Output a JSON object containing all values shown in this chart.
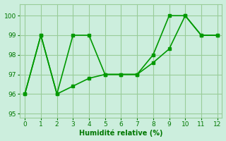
{
  "line1_x": [
    0,
    1,
    2,
    3,
    4,
    5,
    6,
    7,
    8,
    9,
    10,
    11,
    12
  ],
  "line1_y": [
    96,
    99,
    96,
    99,
    99,
    97,
    97,
    97,
    98,
    100,
    100,
    99,
    99
  ],
  "line2_x": [
    0,
    1,
    2,
    3,
    4,
    5,
    6,
    7,
    8,
    9,
    10,
    11,
    12
  ],
  "line2_y": [
    96,
    99,
    96,
    96.4,
    96.8,
    97,
    97,
    97,
    97.6,
    98.3,
    100,
    99,
    99
  ],
  "line_color": "#009900",
  "bg_color": "#cceedd",
  "grid_color": "#99cc99",
  "xlabel": "Humidité relative (%)",
  "xlim": [
    -0.3,
    12.3
  ],
  "ylim": [
    94.8,
    100.6
  ],
  "yticks": [
    95,
    96,
    97,
    98,
    99,
    100
  ],
  "xticks": [
    0,
    1,
    2,
    3,
    4,
    5,
    6,
    7,
    8,
    9,
    10,
    11,
    12
  ],
  "xlabel_color": "#007700",
  "tick_color": "#007700",
  "markersize": 3.5,
  "linewidth": 1.2
}
